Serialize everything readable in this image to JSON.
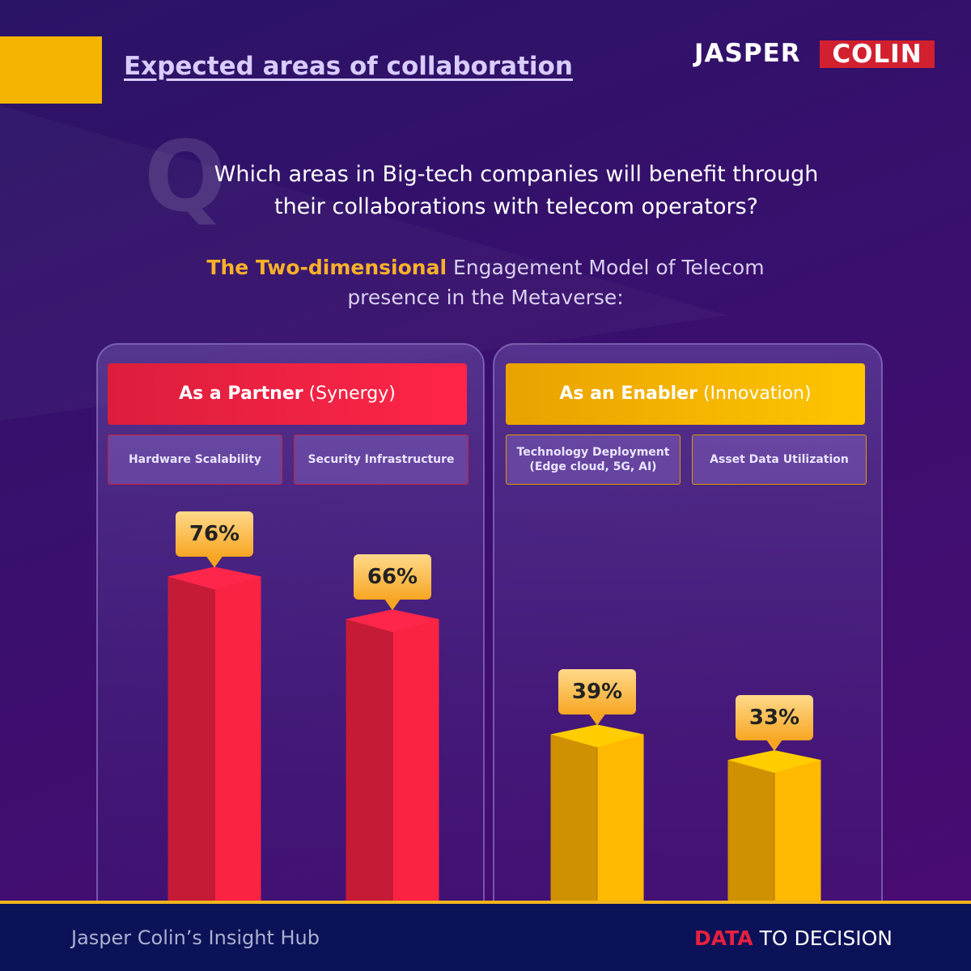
{
  "header": {
    "title": "Expected areas of collaboration",
    "brand": [
      "JASPER",
      "COLIN"
    ]
  },
  "question": {
    "mark": "Q",
    "text": "Which areas in Big-tech companies will benefit through their collaborations with telecom operators?"
  },
  "intro": {
    "highlight": "The Two-dimensional",
    "text": "Engagement Model of Telecom presence in the Metaverse:"
  },
  "chart_data": [
    {
      "type": "bar",
      "title": "As a Partner",
      "subtitle": "(Synergy)",
      "categories": [
        "Hardware Scalability",
        "Security Infrastructure"
      ],
      "values": [
        76,
        66
      ],
      "value_labels": [
        "76%",
        "66%"
      ],
      "color": "#e8203f"
    },
    {
      "type": "bar",
      "title": "As an Enabler",
      "subtitle": "(Innovation)",
      "categories": [
        "Technology Deployment\n(Edge cloud, 5G, AI)",
        "Asset Data Utilization"
      ],
      "values": [
        39,
        33
      ],
      "value_labels": [
        "39%",
        "33%"
      ],
      "color": "#f5ab00"
    }
  ],
  "footer": {
    "left": "Jasper Colin’s Insight Hub",
    "highlight": "DATA",
    "right": "TO DECISION"
  }
}
